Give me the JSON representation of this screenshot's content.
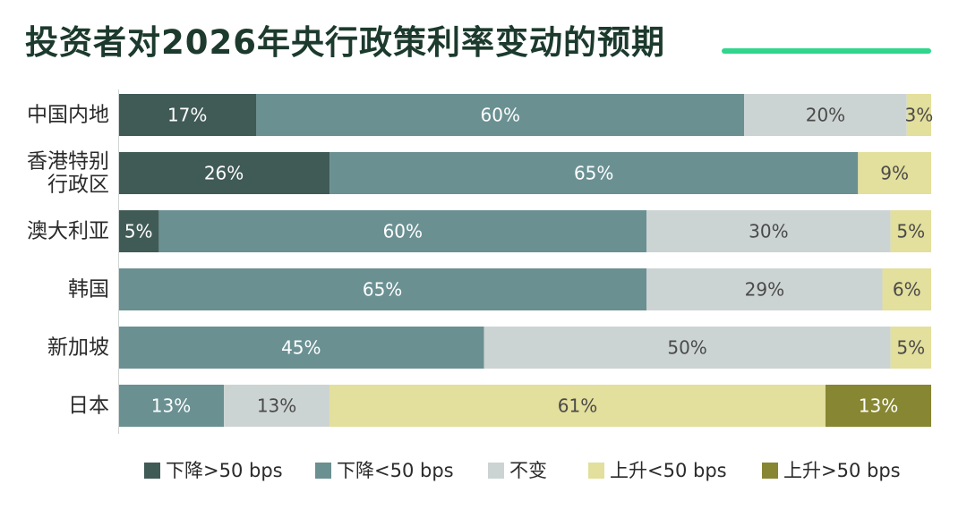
{
  "chart_data": {
    "type": "bar",
    "orientation": "horizontal",
    "stacked": true,
    "title": "投资者对2026年央行政策利率变动的预期",
    "categories": [
      [
        "中国内地"
      ],
      [
        "香港特别",
        "行政区"
      ],
      [
        "澳大利亚"
      ],
      [
        "韩国"
      ],
      [
        "新加坡"
      ],
      [
        "日本"
      ]
    ],
    "series": [
      {
        "name": "下降>50 bps",
        "color": "#405a56",
        "text_color": "#ffffff",
        "values": [
          17,
          26,
          5,
          0,
          0,
          0
        ]
      },
      {
        "name": "下降<50 bps",
        "color": "#6a9092",
        "text_color": "#ffffff",
        "values": [
          60,
          65,
          60,
          65,
          45,
          13
        ]
      },
      {
        "name": "不变",
        "color": "#ccd4d3",
        "text_color": "#4a4a4a",
        "values": [
          20,
          0,
          30,
          29,
          50,
          13
        ]
      },
      {
        "name": "上升<50 bps",
        "color": "#e3df9c",
        "text_color": "#4a4a4a",
        "values": [
          3,
          9,
          5,
          6,
          5,
          61
        ]
      },
      {
        "name": "上升>50 bps",
        "color": "#878632",
        "text_color": "#ffffff",
        "values": [
          0,
          0,
          0,
          0,
          0,
          13
        ]
      }
    ],
    "value_suffix": "%",
    "xlim": [
      0,
      100
    ],
    "grid": false,
    "legend": "bottom"
  }
}
